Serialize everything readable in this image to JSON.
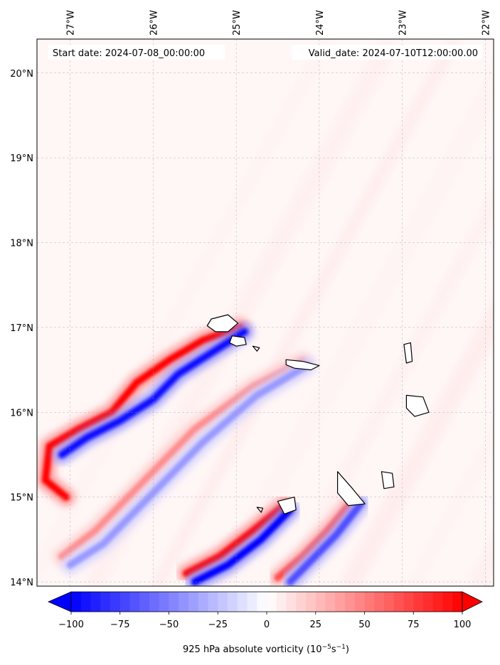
{
  "chart_data": {
    "type": "heatmap",
    "title": "",
    "annotations": {
      "start_date": "Start date: 2024-07-08_00:00:00",
      "valid_date": "Valid_date: 2024-07-10T12:00:00.00"
    },
    "lon_ticks": [
      {
        "value": -27,
        "label": "27°W"
      },
      {
        "value": -26,
        "label": "26°W"
      },
      {
        "value": -25,
        "label": "25°W"
      },
      {
        "value": -24,
        "label": "24°W"
      },
      {
        "value": -23,
        "label": "23°W"
      },
      {
        "value": -22,
        "label": "22°W"
      }
    ],
    "lat_ticks": [
      {
        "value": 14,
        "label": "14°N"
      },
      {
        "value": 15,
        "label": "15°N"
      },
      {
        "value": 16,
        "label": "16°N"
      },
      {
        "value": 17,
        "label": "17°N"
      },
      {
        "value": 18,
        "label": "18°N"
      },
      {
        "value": 19,
        "label": "19°N"
      },
      {
        "value": 20,
        "label": "20°N"
      }
    ],
    "lon_range": [
      -27.4,
      -21.9
    ],
    "lat_range": [
      13.95,
      20.4
    ],
    "grid": true,
    "colorbar": {
      "label_main": "925 hPa absolute vorticity (10",
      "label_sup1": "−5",
      "label_mid": "s",
      "label_sup2": "−1",
      "label_end": ")",
      "range": [
        -100,
        100
      ],
      "ticks": [
        {
          "value": -100,
          "label": "−100"
        },
        {
          "value": -75,
          "label": "−75"
        },
        {
          "value": -50,
          "label": "−50"
        },
        {
          "value": -25,
          "label": "−25"
        },
        {
          "value": 0,
          "label": "0"
        },
        {
          "value": 25,
          "label": "25"
        },
        {
          "value": 50,
          "label": "50"
        },
        {
          "value": 75,
          "label": "75"
        },
        {
          "value": 100,
          "label": "100"
        }
      ],
      "extend": "both",
      "colormap": "bwr"
    },
    "background_value": 5,
    "features": [
      {
        "name": "santo-antao-wake-positive",
        "value": 100,
        "points": [
          [
            -24.95,
            17.0
          ],
          [
            -25.4,
            16.85
          ],
          [
            -25.8,
            16.62
          ],
          [
            -26.2,
            16.35
          ],
          [
            -26.5,
            16.0
          ],
          [
            -26.9,
            15.8
          ],
          [
            -27.25,
            15.6
          ],
          [
            -27.3,
            15.2
          ],
          [
            -27.05,
            15.0
          ]
        ]
      },
      {
        "name": "santo-antao-wake-negative",
        "value": -95,
        "points": [
          [
            -24.9,
            16.95
          ],
          [
            -25.3,
            16.7
          ],
          [
            -25.7,
            16.45
          ],
          [
            -26.0,
            16.15
          ],
          [
            -26.4,
            15.9
          ],
          [
            -26.8,
            15.7
          ],
          [
            -27.1,
            15.5
          ]
        ]
      },
      {
        "name": "sao-nicolau-wake-positive",
        "value": 45,
        "points": [
          [
            -24.2,
            16.6
          ],
          [
            -24.8,
            16.3
          ],
          [
            -25.5,
            15.8
          ],
          [
            -26.1,
            15.2
          ],
          [
            -26.7,
            14.6
          ],
          [
            -27.1,
            14.3
          ]
        ]
      },
      {
        "name": "sao-nicolau-wake-negative",
        "value": -40,
        "points": [
          [
            -24.15,
            16.55
          ],
          [
            -24.75,
            16.2
          ],
          [
            -25.4,
            15.65
          ],
          [
            -26.0,
            15.05
          ],
          [
            -26.6,
            14.45
          ],
          [
            -27.0,
            14.2
          ]
        ]
      },
      {
        "name": "fogo-wake-positive",
        "value": 100,
        "points": [
          [
            -24.4,
            14.92
          ],
          [
            -24.8,
            14.6
          ],
          [
            -25.2,
            14.3
          ],
          [
            -25.6,
            14.1
          ]
        ]
      },
      {
        "name": "fogo-wake-negative",
        "value": -100,
        "points": [
          [
            -24.35,
            14.85
          ],
          [
            -24.7,
            14.5
          ],
          [
            -25.1,
            14.2
          ],
          [
            -25.5,
            14.0
          ]
        ]
      },
      {
        "name": "santiago-wake-positive",
        "value": 70,
        "points": [
          [
            -23.6,
            14.95
          ],
          [
            -23.9,
            14.6
          ],
          [
            -24.2,
            14.3
          ],
          [
            -24.5,
            14.05
          ]
        ]
      },
      {
        "name": "santiago-wake-negative",
        "value": -70,
        "points": [
          [
            -23.5,
            14.92
          ],
          [
            -23.8,
            14.55
          ],
          [
            -24.1,
            14.25
          ],
          [
            -24.35,
            14.0
          ]
        ]
      }
    ],
    "islands": [
      {
        "name": "Santo Antão",
        "points": [
          [
            -25.3,
            17.1
          ],
          [
            -25.1,
            17.15
          ],
          [
            -24.98,
            17.05
          ],
          [
            -25.1,
            16.95
          ],
          [
            -25.25,
            16.95
          ],
          [
            -25.35,
            17.02
          ]
        ]
      },
      {
        "name": "São Vicente",
        "points": [
          [
            -25.05,
            16.9
          ],
          [
            -24.9,
            16.88
          ],
          [
            -24.88,
            16.8
          ],
          [
            -25.0,
            16.78
          ],
          [
            -25.08,
            16.82
          ]
        ]
      },
      {
        "name": "Santa Luzia",
        "points": [
          [
            -24.8,
            16.78
          ],
          [
            -24.72,
            16.76
          ],
          [
            -24.75,
            16.72
          ]
        ]
      },
      {
        "name": "São Nicolau",
        "points": [
          [
            -24.4,
            16.62
          ],
          [
            -24.2,
            16.6
          ],
          [
            -24.0,
            16.55
          ],
          [
            -24.1,
            16.5
          ],
          [
            -24.3,
            16.52
          ],
          [
            -24.4,
            16.56
          ]
        ]
      },
      {
        "name": "Sal",
        "points": [
          [
            -22.98,
            16.8
          ],
          [
            -22.9,
            16.82
          ],
          [
            -22.88,
            16.6
          ],
          [
            -22.95,
            16.58
          ]
        ]
      },
      {
        "name": "Boa Vista",
        "points": [
          [
            -22.95,
            16.2
          ],
          [
            -22.75,
            16.18
          ],
          [
            -22.68,
            16.0
          ],
          [
            -22.85,
            15.95
          ],
          [
            -22.95,
            16.05
          ]
        ]
      },
      {
        "name": "Maio",
        "points": [
          [
            -23.25,
            15.3
          ],
          [
            -23.12,
            15.28
          ],
          [
            -23.1,
            15.12
          ],
          [
            -23.22,
            15.1
          ]
        ]
      },
      {
        "name": "Santiago",
        "points": [
          [
            -23.78,
            15.3
          ],
          [
            -23.6,
            15.1
          ],
          [
            -23.45,
            14.92
          ],
          [
            -23.65,
            14.9
          ],
          [
            -23.78,
            15.05
          ]
        ]
      },
      {
        "name": "Fogo",
        "points": [
          [
            -24.5,
            14.95
          ],
          [
            -24.3,
            15.0
          ],
          [
            -24.28,
            14.85
          ],
          [
            -24.42,
            14.8
          ]
        ]
      },
      {
        "name": "Brava",
        "points": [
          [
            -24.75,
            14.88
          ],
          [
            -24.68,
            14.87
          ],
          [
            -24.7,
            14.82
          ]
        ]
      }
    ]
  }
}
